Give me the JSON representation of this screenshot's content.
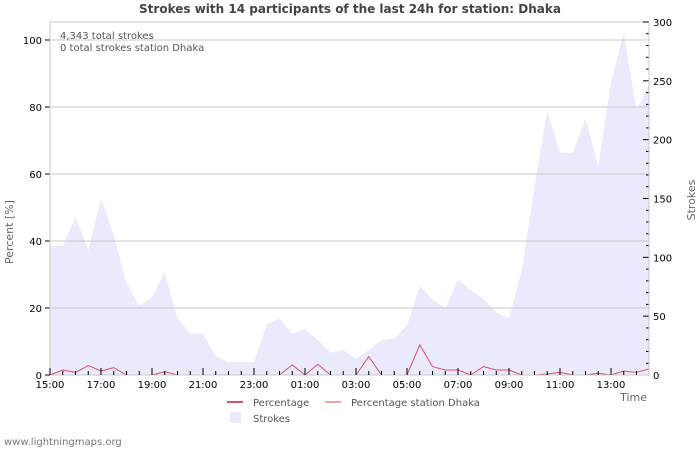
{
  "title": "Strokes with 14 participants of the last 24h for station: Dhaka",
  "annotations": {
    "total_strokes": "4,343 total strokes",
    "total_station": "0 total strokes station Dhaka"
  },
  "footer": "www.lightningmaps.org",
  "colors": {
    "strokes_fill": "#eaeafc",
    "percentage_line": "#d9506e",
    "percentage_station_line": "#f4a0a0",
    "grid": "#c8c8c8",
    "axis": "#c8c8c8"
  },
  "chart_data": {
    "type": "area",
    "title": "Strokes with 14 participants of the last 24h for station: Dhaka",
    "xlabel": "Time",
    "ylabel_left": "Percent   [%]",
    "ylabel_right": "Strokes",
    "ylim_left": [
      0,
      100
    ],
    "ylim_right": [
      0,
      300
    ],
    "left_ticks": [
      "0",
      "20",
      "40",
      "60",
      "80",
      "100"
    ],
    "right_ticks": [
      "0",
      "50",
      "100",
      "150",
      "200",
      "250",
      "300"
    ],
    "x_tick_labels": [
      "15:00",
      "17:00",
      "19:00",
      "21:00",
      "23:00",
      "01:00",
      "03:00",
      "05:00",
      "07:00",
      "09:00",
      "11:00",
      "13:00"
    ],
    "x_step_minutes": 30,
    "grid": true,
    "legend_position": "bottom",
    "legend": [
      "Percentage",
      "Percentage station Dhaka",
      "Strokes"
    ],
    "series": [
      {
        "name": "Strokes",
        "axis": "right",
        "values": [
          110,
          110,
          134,
          106,
          150,
          119,
          78,
          59,
          66,
          88,
          48,
          35,
          35,
          16,
          11,
          11,
          11,
          43,
          48,
          35,
          39,
          30,
          19,
          21,
          14,
          21,
          30,
          31,
          42,
          76,
          64,
          57,
          81,
          72,
          65,
          53,
          48,
          89,
          161,
          225,
          189,
          189,
          218,
          177,
          249,
          291,
          225,
          246
        ]
      },
      {
        "name": "Percentage",
        "axis": "left",
        "values": [
          0,
          1.5,
          0.8,
          2.8,
          1.2,
          2.2,
          0,
          0,
          0,
          1,
          0,
          0,
          0,
          0,
          0,
          0,
          0,
          0,
          0,
          3,
          0,
          3.2,
          0,
          0,
          0,
          5.5,
          0,
          0,
          0,
          9,
          2.5,
          1.5,
          1.5,
          0,
          2.5,
          1.5,
          1.5,
          0,
          0,
          0.3,
          0.8,
          0,
          0,
          0.5,
          0,
          1.2,
          0.8,
          1.8
        ]
      },
      {
        "name": "Percentage station Dhaka",
        "axis": "left",
        "values": [
          0,
          0,
          0,
          0,
          0,
          0,
          0,
          0,
          0,
          0,
          0,
          0,
          0,
          0,
          0,
          0,
          0,
          0,
          0,
          0,
          0,
          0,
          0,
          0,
          0,
          0,
          0,
          0,
          0,
          0,
          0,
          0,
          0,
          0,
          0,
          0,
          0,
          0,
          0,
          0,
          0,
          0,
          0,
          0,
          0,
          0,
          0,
          0
        ]
      }
    ]
  }
}
